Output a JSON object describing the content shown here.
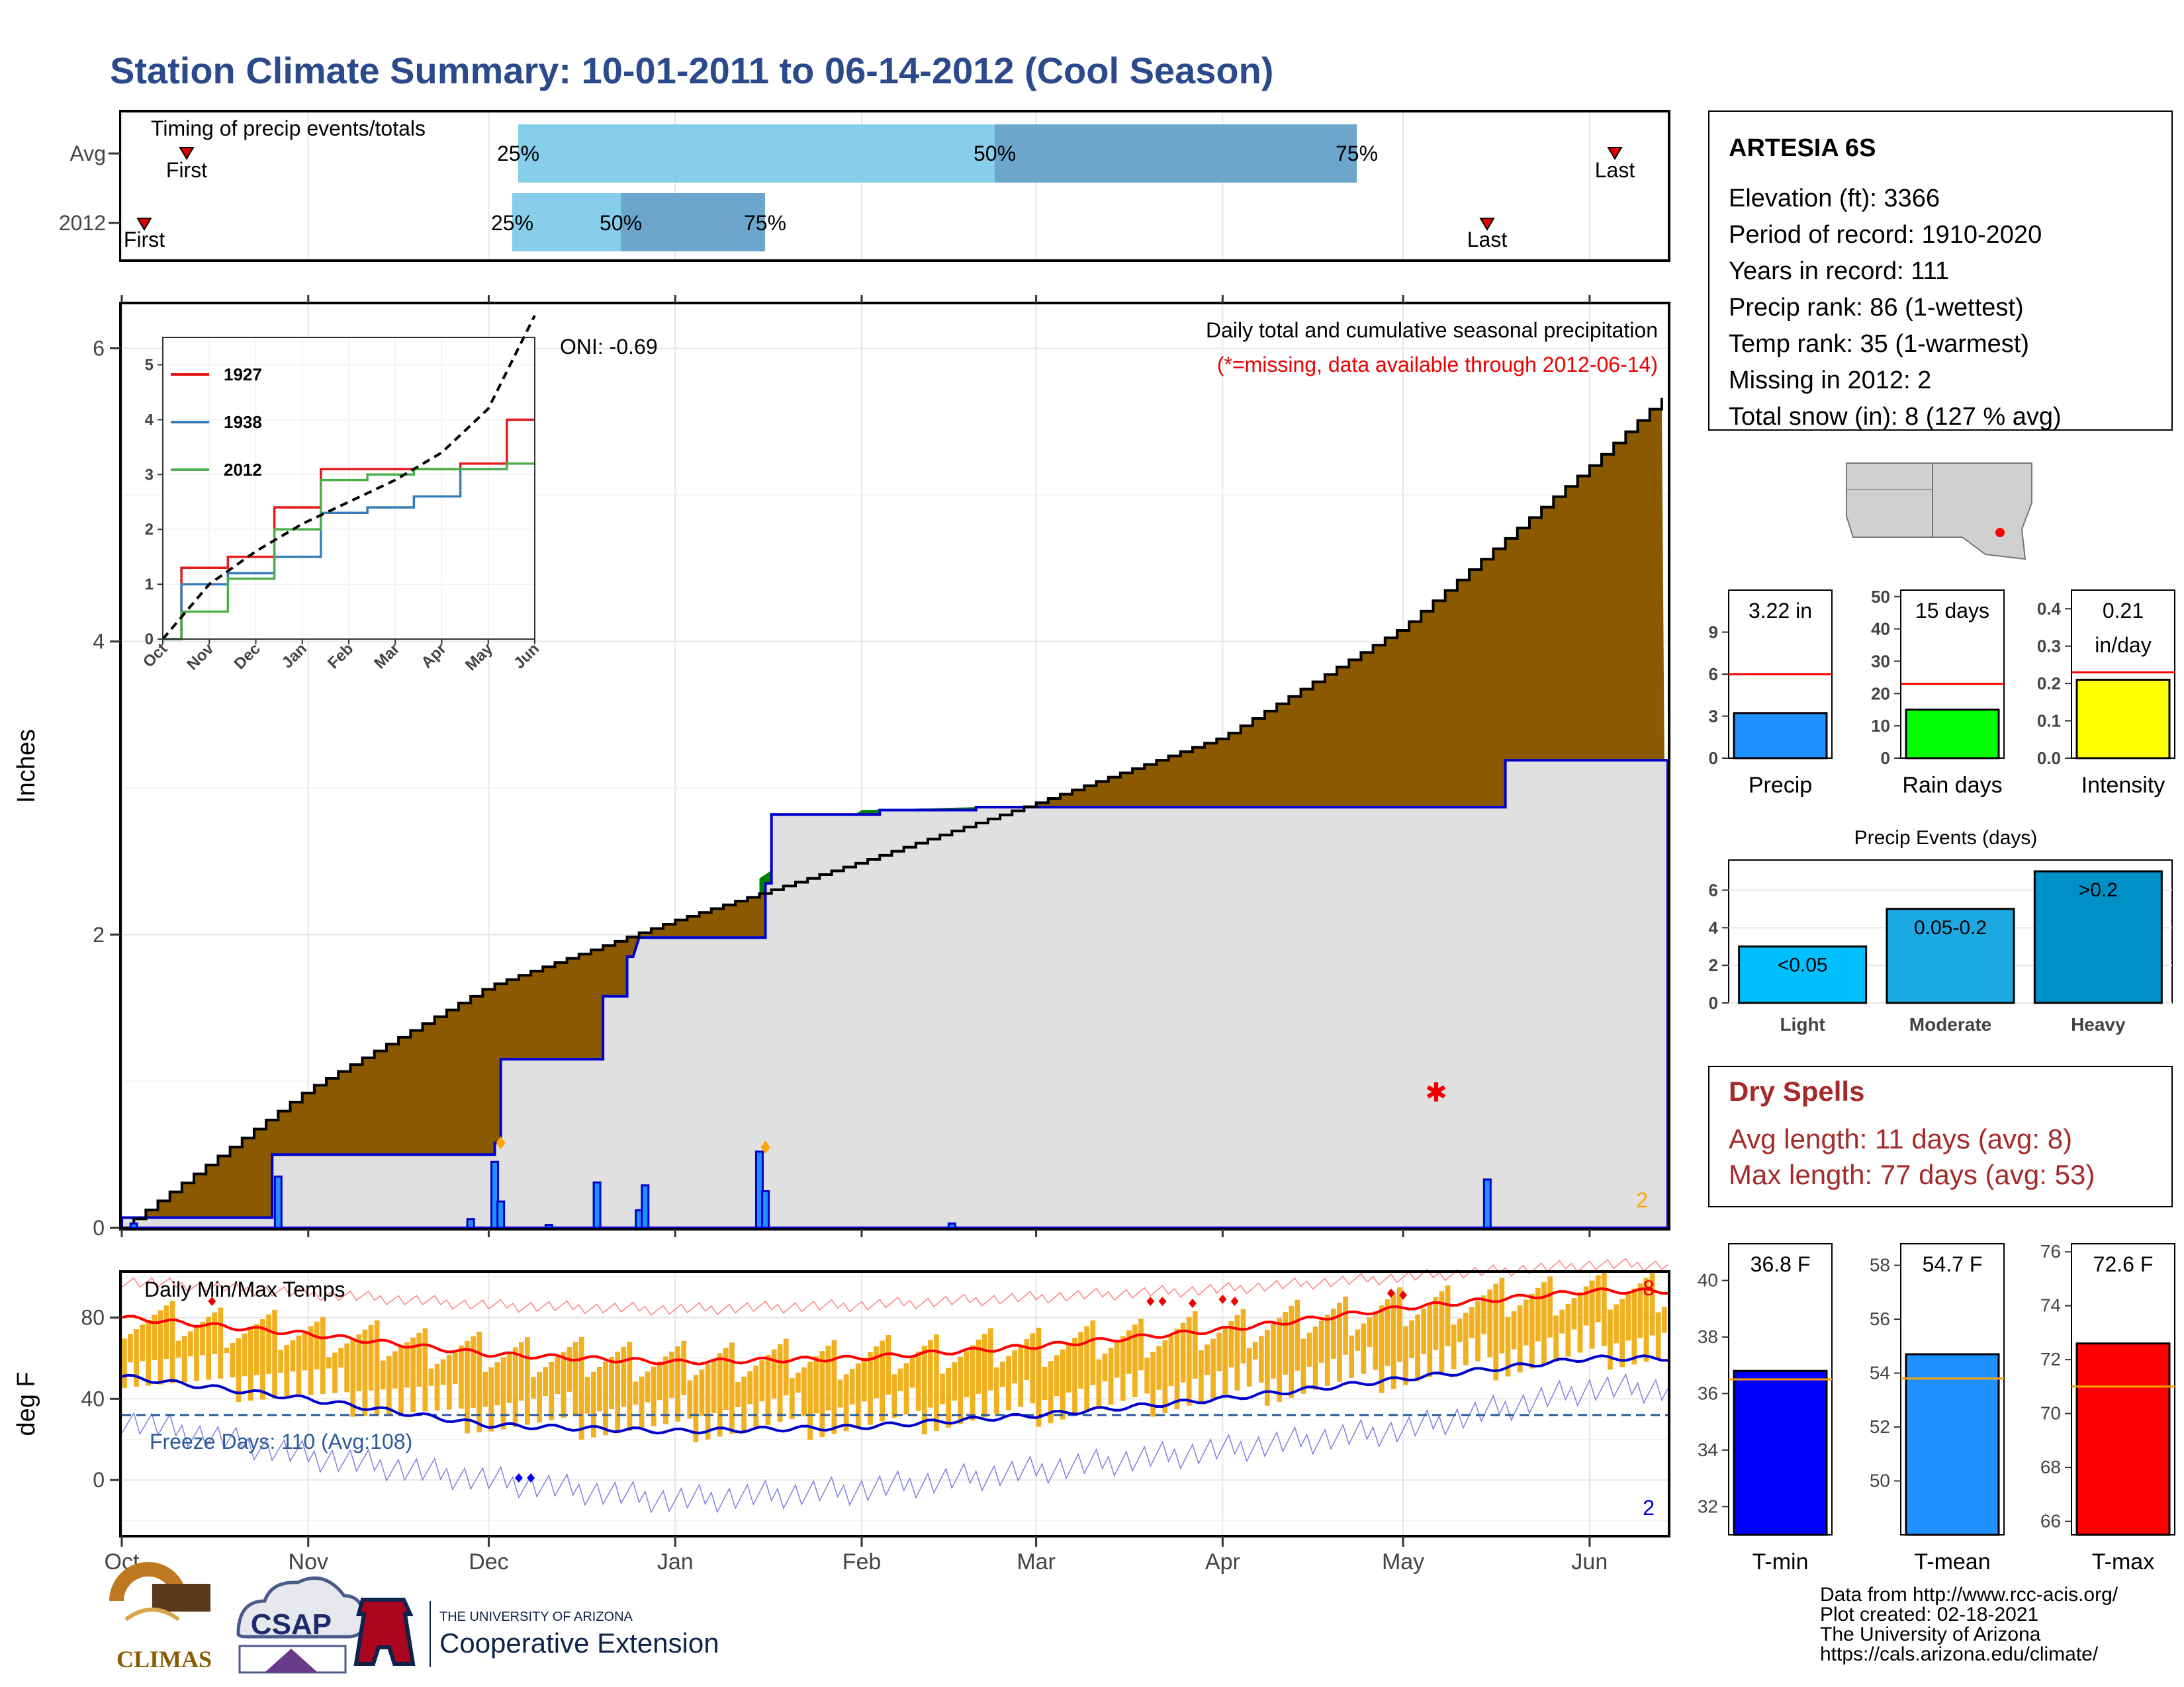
{
  "title": "Station Climate Summary: 10-01-2011 to 06-14-2012 (Cool Season)",
  "colors": {
    "title": "#2b4a8b",
    "cumulative_fill": "#8b5a00",
    "surplus_fill": "#008000",
    "current_line": "#0000cc",
    "current_area": "#e0e0e0",
    "temp_bar": "#f0b020",
    "tmax_avg": "#ff0000",
    "tmin_avg": "#0000cc",
    "dry_spells_text": "#a52a2a"
  },
  "timing": {
    "label": "Timing of precip events/totals",
    "rows": [
      "Avg",
      "2012"
    ],
    "avg": {
      "first": "First",
      "last": "Last",
      "p25": "25%",
      "p50": "50%",
      "p75": "75%"
    },
    "y2012": {
      "first": "First",
      "last": "Last",
      "p25": "25%",
      "p50": "50%",
      "p75": "75%"
    }
  },
  "precip_panel": {
    "ylabel": "Inches",
    "yticks": [
      "0",
      "2",
      "4",
      "6"
    ],
    "oni": "ONI: -0.69",
    "subtitle": "Daily total and cumulative seasonal precipitation",
    "missing_note": "(*=missing, data available through 2012-06-14)",
    "missing_count": "2"
  },
  "inset": {
    "yticks": [
      "0",
      "1",
      "2",
      "3",
      "4",
      "5"
    ],
    "xticks": [
      "Oct",
      "Nov",
      "Dec",
      "Jan",
      "Feb",
      "Mar",
      "Apr",
      "May",
      "Jun"
    ],
    "legend": [
      {
        "name": "1927",
        "color": "#e41a1c"
      },
      {
        "name": "1938",
        "color": "#377eb8"
      },
      {
        "name": "2012",
        "color": "#4daf4a"
      }
    ]
  },
  "temp_panel": {
    "label": "Daily Min/Max Temps",
    "ylabel": "deg F",
    "yticks": [
      "0",
      "40",
      "80"
    ],
    "freeze": "Freeze Days: 110 (Avg:108)",
    "max_count": "8",
    "min_count": "2"
  },
  "xaxis": {
    "months": [
      "Oct",
      "Nov",
      "Dec",
      "Jan",
      "Feb",
      "Mar",
      "Apr",
      "May",
      "Jun"
    ]
  },
  "station": {
    "name": "ARTESIA 6S",
    "lines": [
      "Elevation (ft): 3366",
      "Period of record: 1910-2020",
      "Years in record: 111",
      "Precip rank: 86 (1-wettest)",
      "Temp rank: 35 (1-warmest)",
      "Missing in 2012: 2",
      "Total snow (in): 8 (127 % avg)"
    ]
  },
  "mini_bars": {
    "precip": {
      "value_label": "3.22 in",
      "label": "Precip",
      "yticks": [
        "0",
        "3",
        "6",
        "9"
      ]
    },
    "rain_days": {
      "value_label": "15 days",
      "label": "Rain days",
      "yticks": [
        "0",
        "10",
        "20",
        "30",
        "40",
        "50"
      ]
    },
    "intensity": {
      "value_label_1": "0.21",
      "value_label_2": "in/day",
      "label": "Intensity",
      "yticks": [
        "0.0",
        "0.1",
        "0.2",
        "0.3",
        "0.4"
      ]
    }
  },
  "events": {
    "title": "Precip Events (days)",
    "yticks": [
      "0",
      "2",
      "4",
      "6"
    ],
    "bars": [
      {
        "category": "Light",
        "label": "<0.05"
      },
      {
        "category": "Moderate",
        "label": "0.05-0.2"
      },
      {
        "category": "Heavy",
        "label": ">0.2"
      }
    ]
  },
  "dry_spells": {
    "title": "Dry Spells",
    "avg": "Avg length: 11 days (avg: 8)",
    "max": "Max length: 77 days (avg: 53)"
  },
  "temp_bars": {
    "tmin": {
      "value_label": "36.8 F",
      "label": "T-min",
      "yticks": [
        "32",
        "34",
        "36",
        "38",
        "40"
      ]
    },
    "tmean": {
      "value_label": "54.7 F",
      "label": "T-mean",
      "yticks": [
        "50",
        "52",
        "54",
        "56",
        "58"
      ]
    },
    "tmax": {
      "value_label": "72.6 F",
      "label": "T-max",
      "yticks": [
        "66",
        "68",
        "70",
        "72",
        "74",
        "76"
      ]
    }
  },
  "logos": {
    "climas": "CLIMAS",
    "csap": "CSAP",
    "ua_small": "THE UNIVERSITY OF ARIZONA",
    "coop": "Cooperative Extension"
  },
  "footer": [
    "Data from http://www.rcc-acis.org/",
    "Plot created: 02-18-2021",
    "The University of Arizona",
    "https://cals.arizona.edu/climate/"
  ],
  "chart_data": [
    {
      "type": "area",
      "name": "cumulative seasonal precipitation",
      "x": [
        "Oct 1",
        "Nov 1",
        "Dec 1",
        "Jan 1",
        "Feb 1",
        "Mar 1",
        "Apr 1",
        "May 1",
        "Jun 1",
        "Jun 14"
      ],
      "series": [
        {
          "name": "average cumulative",
          "values": [
            0,
            0.95,
            1.65,
            2.1,
            2.5,
            2.9,
            3.35,
            4.1,
            5.2,
            5.7
          ]
        },
        {
          "name": "2012 cumulative",
          "values": [
            0,
            0.5,
            1.15,
            2.0,
            2.85,
            2.88,
            2.88,
            2.88,
            3.22,
            3.22
          ]
        }
      ],
      "ylim": [
        0,
        6.3
      ]
    },
    {
      "type": "bar",
      "name": "daily precipitation",
      "x": [
        "Oct 3",
        "Oct 27",
        "Nov 28",
        "Dec 2",
        "Dec 3",
        "Dec 11",
        "Dec 19",
        "Dec 26",
        "Dec 27",
        "Jan 15",
        "Jan 16",
        "Feb 16",
        "May 15"
      ],
      "values": [
        0.03,
        0.35,
        0.06,
        0.45,
        0.18,
        0.02,
        0.31,
        0.12,
        0.29,
        0.52,
        0.25,
        0.03,
        0.33
      ]
    },
    {
      "type": "line",
      "name": "historical cumulative inset",
      "x": [
        "Oct",
        "Nov",
        "Dec",
        "Jan",
        "Feb",
        "Mar",
        "Apr",
        "May",
        "Jun"
      ],
      "series": [
        {
          "name": "1927",
          "values": [
            0,
            1.3,
            1.5,
            2.4,
            3.1,
            3.1,
            3.1,
            3.2,
            4.0
          ]
        },
        {
          "name": "1938",
          "values": [
            0,
            1.0,
            1.2,
            1.5,
            2.3,
            2.4,
            2.6,
            3.1,
            3.2
          ]
        },
        {
          "name": "2012",
          "values": [
            0,
            0.5,
            1.1,
            2.0,
            2.9,
            3.0,
            3.1,
            3.1,
            3.2
          ]
        },
        {
          "name": "average",
          "values": [
            0,
            1.0,
            1.6,
            2.1,
            2.5,
            2.9,
            3.4,
            4.2,
            5.9
          ]
        }
      ],
      "ylim": [
        0,
        5.5
      ]
    },
    {
      "type": "line",
      "name": "daily temperatures",
      "x": [
        "Oct",
        "Nov",
        "Dec",
        "Jan",
        "Feb",
        "Mar",
        "Apr",
        "May",
        "Jun"
      ],
      "series": [
        {
          "name": "avg max",
          "values": [
            80,
            72,
            62,
            58,
            60,
            66,
            74,
            85,
            93
          ]
        },
        {
          "name": "avg min",
          "values": [
            51,
            40,
            27,
            24,
            26,
            32,
            40,
            50,
            60
          ]
        },
        {
          "name": "record max",
          "values": [
            98,
            92,
            86,
            84,
            86,
            90,
            94,
            100,
            106
          ]
        },
        {
          "name": "record min",
          "values": [
            30,
            12,
            0,
            -10,
            -5,
            5,
            15,
            25,
            45
          ]
        }
      ],
      "ylim": [
        -27,
        102
      ],
      "freeze_line": 32
    },
    {
      "type": "bar",
      "name": "Precip",
      "categories": [
        "Precip"
      ],
      "values": [
        3.22
      ],
      "avg": 6.0,
      "ylim": [
        0,
        12
      ]
    },
    {
      "type": "bar",
      "name": "Rain days",
      "categories": [
        "Rain days"
      ],
      "values": [
        15
      ],
      "avg": 23,
      "ylim": [
        0,
        52
      ]
    },
    {
      "type": "bar",
      "name": "Intensity",
      "categories": [
        "Intensity"
      ],
      "values": [
        0.21
      ],
      "avg": 0.23,
      "ylim": [
        0,
        0.45
      ]
    },
    {
      "type": "bar",
      "name": "Precip Events (days)",
      "categories": [
        "Light",
        "Moderate",
        "Heavy"
      ],
      "values": [
        3,
        5,
        7
      ],
      "ylim": [
        0,
        7.6
      ]
    },
    {
      "type": "bar",
      "name": "T-min",
      "categories": [
        "T-min"
      ],
      "values": [
        36.8
      ],
      "avg": 36.5,
      "ylim": [
        31,
        41.3
      ]
    },
    {
      "type": "bar",
      "name": "T-mean",
      "categories": [
        "T-mean"
      ],
      "values": [
        54.7
      ],
      "avg": 53.8,
      "ylim": [
        48,
        58.8
      ]
    },
    {
      "type": "bar",
      "name": "T-max",
      "categories": [
        "T-max"
      ],
      "values": [
        72.6
      ],
      "avg": 71.0,
      "ylim": [
        65.5,
        76.3
      ]
    }
  ]
}
